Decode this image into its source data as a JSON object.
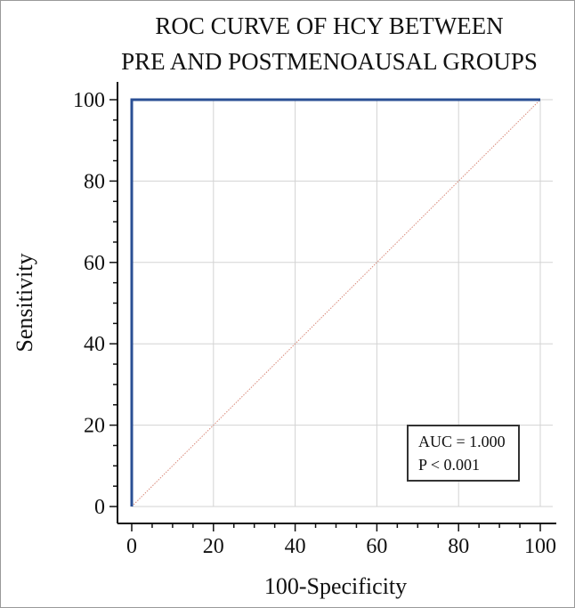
{
  "chart_data": {
    "type": "line",
    "title_lines": [
      "ROC CURVE OF HCY BETWEEN",
      "PRE AND POSTMENOAUSAL GROUPS"
    ],
    "xlabel": "100-Specificity",
    "ylabel": "Sensitivity",
    "xlim": [
      0,
      100
    ],
    "ylim": [
      0,
      100
    ],
    "x_ticks": [
      0,
      20,
      40,
      60,
      80,
      100
    ],
    "y_ticks": [
      0,
      20,
      40,
      60,
      80,
      100
    ],
    "x_tick_labels": [
      "0",
      "20",
      "40",
      "60",
      "80",
      "100"
    ],
    "y_tick_labels": [
      "0",
      "20",
      "40",
      "60",
      "80",
      "100"
    ],
    "grid": true,
    "series": [
      {
        "style": "solid",
        "color": "#2a4f94",
        "x": [
          0,
          0,
          100
        ],
        "y": [
          0,
          100,
          100
        ]
      },
      {
        "style": "dotted",
        "color": "#d98a7a",
        "x": [
          0,
          100
        ],
        "y": [
          0,
          100
        ]
      }
    ],
    "annotations": {
      "auc": "AUC = 1.000",
      "p_value": "P < 0.001"
    }
  }
}
